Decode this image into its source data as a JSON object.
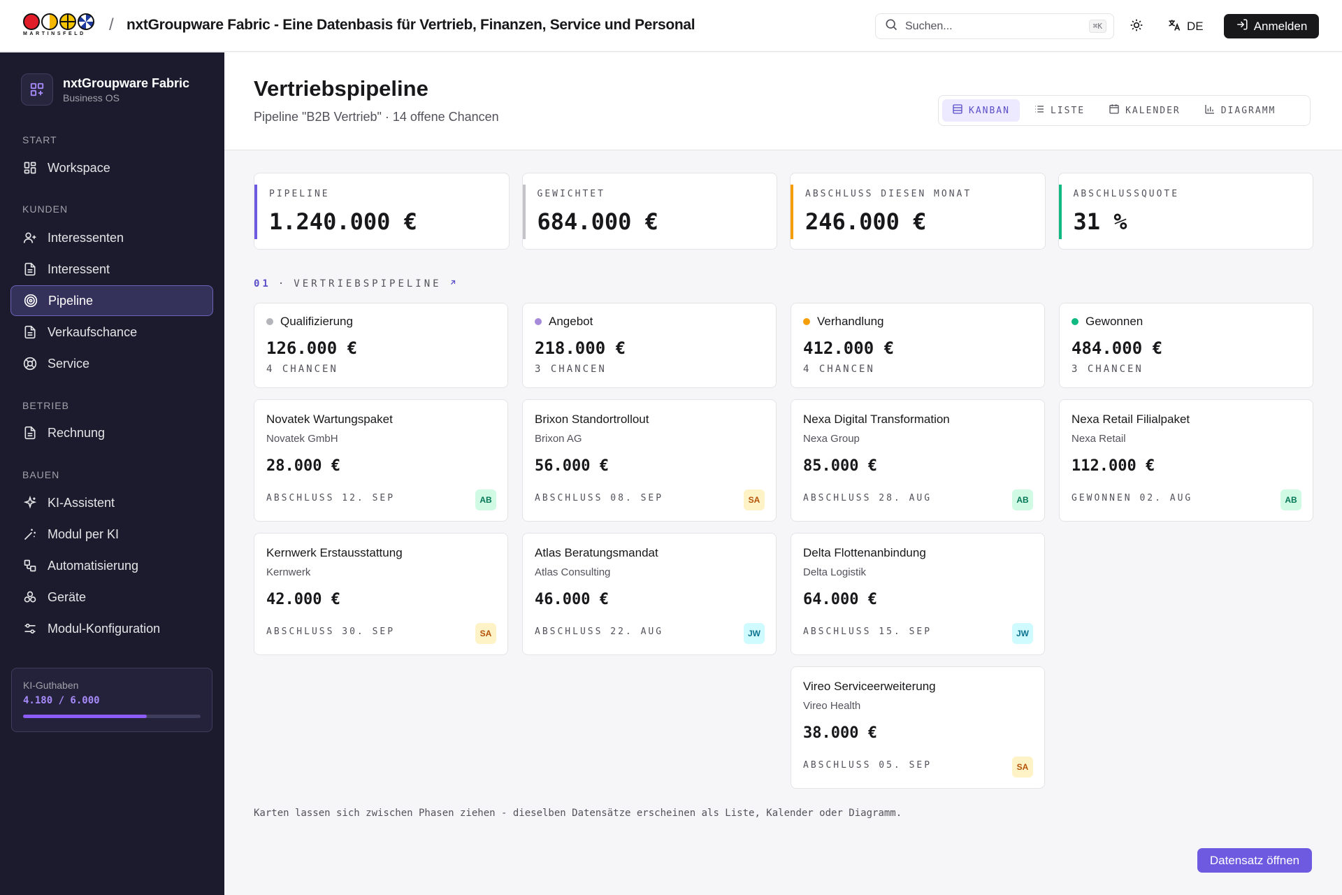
{
  "topbar": {
    "logo_word": "MARTINSFELD",
    "app_title": "nxtGroupware Fabric - Eine Datenbasis für Vertrieb, Finanzen, Service und Personal",
    "search_placeholder": "Suchen...",
    "search_shortcut": "⌘K",
    "language": "DE",
    "login_label": "Anmelden"
  },
  "sidebar": {
    "brand_name": "nxtGroupware Fabric",
    "brand_sub": "Business OS",
    "sections": {
      "start": "START",
      "kunden": "KUNDEN",
      "betrieb": "BETRIEB",
      "bauen": "BAUEN"
    },
    "items": [
      {
        "label": "Workspace",
        "icon": "grid-icon"
      },
      {
        "label": "Interessenten",
        "icon": "user-plus-icon"
      },
      {
        "label": "Interessent",
        "icon": "document-icon"
      },
      {
        "label": "Pipeline",
        "icon": "target-icon",
        "active": true
      },
      {
        "label": "Verkaufschance",
        "icon": "document-icon"
      },
      {
        "label": "Service",
        "icon": "lifebuoy-icon"
      },
      {
        "label": "Rechnung",
        "icon": "document-icon"
      },
      {
        "label": "KI-Assistent",
        "icon": "sparkles-icon"
      },
      {
        "label": "Modul per KI",
        "icon": "wand-icon"
      },
      {
        "label": "Automatisierung",
        "icon": "workflow-icon"
      },
      {
        "label": "Geräte",
        "icon": "boxes-icon"
      },
      {
        "label": "Modul-Konfiguration",
        "icon": "sliders-icon"
      }
    ],
    "credits": {
      "label": "KI-Guthaben",
      "value": "4.180 / 6.000",
      "fraction": 0.697
    }
  },
  "header": {
    "title": "Vertriebspipeline",
    "subtitle": "Pipeline \"B2B Vertrieb\" · 14 offene Chancen",
    "views": [
      {
        "label": "KANBAN",
        "icon": "kanban-icon",
        "active": true
      },
      {
        "label": "LISTE",
        "icon": "list-icon"
      },
      {
        "label": "KALENDER",
        "icon": "calendar-icon"
      },
      {
        "label": "DIAGRAMM",
        "icon": "bar-chart-icon"
      }
    ]
  },
  "kpis": [
    {
      "label": "PIPELINE",
      "value": "1.240.000 €",
      "color": "#6d5ae0"
    },
    {
      "label": "GEWICHTET",
      "value": "684.000 €",
      "color": "#c4c4c8"
    },
    {
      "label": "ABSCHLUSS DIESEN MONAT",
      "value": "246.000 €",
      "color": "#f59e0b"
    },
    {
      "label": "ABSCHLUSSQUOTE",
      "value": "31 %",
      "color": "#10b981"
    }
  ],
  "section": {
    "number": "01",
    "label": "VERTRIEBSPIPELINE"
  },
  "columns": [
    {
      "name": "Qualifizierung",
      "color": "#b4b4bb",
      "sum": "126.000 €",
      "count": "4 CHANCEN",
      "cards": [
        {
          "title": "Novatek Wartungspaket",
          "company": "Novatek GmbH",
          "amount": "28.000 €",
          "due": "ABSCHLUSS 12. SEP",
          "owner": "AB"
        },
        {
          "title": "Kernwerk Erstausstattung",
          "company": "Kernwerk",
          "amount": "42.000 €",
          "due": "ABSCHLUSS 30. SEP",
          "owner": "SA"
        }
      ]
    },
    {
      "name": "Angebot",
      "color": "#a78bda",
      "sum": "218.000 €",
      "count": "3 CHANCEN",
      "cards": [
        {
          "title": "Brixon Standortrollout",
          "company": "Brixon AG",
          "amount": "56.000 €",
          "due": "ABSCHLUSS 08. SEP",
          "owner": "SA"
        },
        {
          "title": "Atlas Beratungsmandat",
          "company": "Atlas Consulting",
          "amount": "46.000 €",
          "due": "ABSCHLUSS 22. AUG",
          "owner": "JW"
        }
      ]
    },
    {
      "name": "Verhandlung",
      "color": "#f59e0b",
      "sum": "412.000 €",
      "count": "4 CHANCEN",
      "cards": [
        {
          "title": "Nexa Digital Transformation",
          "company": "Nexa Group",
          "amount": "85.000 €",
          "due": "ABSCHLUSS 28. AUG",
          "owner": "AB"
        },
        {
          "title": "Delta Flottenanbindung",
          "company": "Delta Logistik",
          "amount": "64.000 €",
          "due": "ABSCHLUSS 15. SEP",
          "owner": "JW"
        },
        {
          "title": "Vireo Serviceerweiterung",
          "company": "Vireo Health",
          "amount": "38.000 €",
          "due": "ABSCHLUSS 05. SEP",
          "owner": "SA"
        }
      ]
    },
    {
      "name": "Gewonnen",
      "color": "#10b981",
      "sum": "484.000 €",
      "count": "3 CHANCEN",
      "cards": [
        {
          "title": "Nexa Retail Filialpaket",
          "company": "Nexa Retail",
          "amount": "112.000 €",
          "due": "GEWONNEN 02. AUG",
          "owner": "AB"
        }
      ]
    }
  ],
  "owner_colors": {
    "AB": {
      "bg": "#d1fae5",
      "fg": "#047857"
    },
    "SA": {
      "bg": "#fef3c7",
      "fg": "#b45309"
    },
    "JW": {
      "bg": "#cffafe",
      "fg": "#0e7490"
    }
  },
  "footnote": "Karten lassen sich zwischen Phasen ziehen - dieselben Datensätze erscheinen als Liste, Kalender oder Diagramm.",
  "open_record_label": "Datensatz öffnen"
}
